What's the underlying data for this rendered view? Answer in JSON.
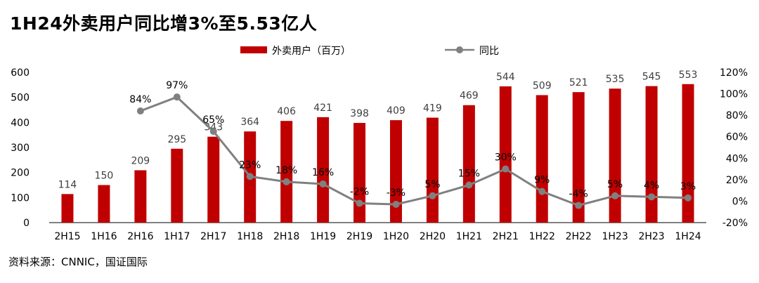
{
  "title": "1H24外卖用户同比增3%至5.53亿人",
  "source": "资料来源：CNNIC，国证国际",
  "chart_data": {
    "type": "bar+line",
    "categories": [
      "2H15",
      "1H16",
      "2H16",
      "1H17",
      "2H17",
      "1H18",
      "2H18",
      "1H19",
      "2H19",
      "1H20",
      "2H20",
      "1H21",
      "2H21",
      "1H22",
      "2H22",
      "1H23",
      "2H23",
      "1H24"
    ],
    "series": [
      {
        "name": "外卖用户（百万）",
        "type": "bar",
        "axis": "left",
        "color": "#C00000",
        "values": [
          114,
          150,
          209,
          295,
          343,
          364,
          406,
          421,
          398,
          409,
          419,
          469,
          544,
          509,
          521,
          535,
          545,
          553
        ],
        "labels": [
          "114",
          "150",
          "209",
          "295",
          "343",
          "364",
          "406",
          "421",
          "398",
          "409",
          "419",
          "469",
          "544",
          "509",
          "521",
          "535",
          "545",
          "553"
        ]
      },
      {
        "name": "同比",
        "type": "line",
        "axis": "right",
        "color": "#808080",
        "values": [
          null,
          null,
          84,
          97,
          65,
          23,
          18,
          16,
          -2,
          -3,
          5,
          15,
          30,
          9,
          -4,
          5,
          4,
          3
        ],
        "labels": [
          "",
          "",
          "84%",
          "97%",
          "65%",
          "23%",
          "18%",
          "16%",
          "-2%",
          "-3%",
          "5%",
          "15%",
          "30%",
          "9%",
          "-4%",
          "5%",
          "4%",
          "3%"
        ]
      }
    ],
    "y_left": {
      "min": 0,
      "max": 600,
      "ticks": [
        "0",
        "100",
        "200",
        "300",
        "400",
        "500",
        "600"
      ]
    },
    "y_right": {
      "min": -20,
      "max": 120,
      "ticks": [
        "-20%",
        "0%",
        "20%",
        "40%",
        "60%",
        "80%",
        "100%",
        "120%"
      ]
    },
    "legend": {
      "position": "top"
    }
  }
}
